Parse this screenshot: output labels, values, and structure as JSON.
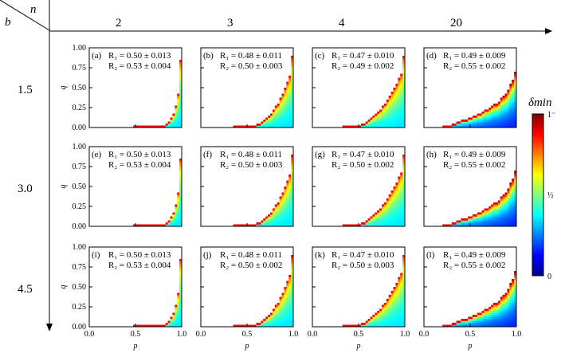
{
  "corner": {
    "row_label": "b",
    "col_label": "n"
  },
  "chart_data": {
    "type": "heatmap",
    "grid": {
      "rows": 3,
      "cols": 4
    },
    "col_header": [
      "2",
      "3",
      "4",
      "20"
    ],
    "row_header": [
      "1.5",
      "3.0",
      "4.5"
    ],
    "n_values": [
      2,
      3,
      4,
      20
    ],
    "b_values": [
      1.5,
      3.0,
      4.5
    ],
    "xlabel": "p",
    "ylabel": "q",
    "xlim": [
      0,
      1
    ],
    "ylim": [
      0,
      1
    ],
    "x_ticks": [
      "0.0",
      "0.5",
      "1.0"
    ],
    "y_ticks": [
      "0.00",
      "0.25",
      "0.50",
      "0.75",
      "1.00"
    ],
    "colorbar": {
      "label": "δmin",
      "ticks": [
        "0",
        "½",
        "1⁻"
      ],
      "range": [
        0,
        1
      ],
      "colormap": "jet"
    },
    "panels": [
      {
        "tag": "(a)",
        "r1": "R₁ = 0.50 ± 0.013",
        "r2": "R₂ = 0.53 ± 0.004",
        "n": 2,
        "b": 1.5
      },
      {
        "tag": "(b)",
        "r1": "R₁ = 0.48 ± 0.011",
        "r2": "R₂ = 0.50 ± 0.003",
        "n": 3,
        "b": 1.5
      },
      {
        "tag": "(c)",
        "r1": "R₁ = 0.47 ± 0.010",
        "r2": "R₂ = 0.49 ± 0.002",
        "n": 4,
        "b": 1.5
      },
      {
        "tag": "(d)",
        "r1": "R₁ = 0.49 ± 0.009",
        "r2": "R₂ = 0.55 ± 0.002",
        "n": 20,
        "b": 1.5
      },
      {
        "tag": "(e)",
        "r1": "R₁ = 0.50 ± 0.013",
        "r2": "R₂ = 0.53 ± 0.004",
        "n": 2,
        "b": 3.0
      },
      {
        "tag": "(f)",
        "r1": "R₁ = 0.48 ± 0.011",
        "r2": "R₂ = 0.50 ± 0.003",
        "n": 3,
        "b": 3.0
      },
      {
        "tag": "(g)",
        "r1": "R₁ = 0.47 ± 0.010",
        "r2": "R₂ = 0.50 ± 0.002",
        "n": 4,
        "b": 3.0
      },
      {
        "tag": "(h)",
        "r1": "R₁ = 0.49 ± 0.009",
        "r2": "R₂ = 0.55 ± 0.002",
        "n": 20,
        "b": 3.0
      },
      {
        "tag": "(i)",
        "r1": "R₁ = 0.50 ± 0.013",
        "r2": "R₂ = 0.53 ± 0.004",
        "n": 2,
        "b": 4.5
      },
      {
        "tag": "(j)",
        "r1": "R₁ = 0.48 ± 0.011",
        "r2": "R₂ = 0.50 ± 0.002",
        "n": 3,
        "b": 4.5
      },
      {
        "tag": "(k)",
        "r1": "R₁ = 0.47 ± 0.010",
        "r2": "R₂ = 0.50 ± 0.003",
        "n": 4,
        "b": 4.5
      },
      {
        "tag": "(l)",
        "r1": "R₁ = 0.49 ± 0.009",
        "r2": "R₂ = 0.55 ± 0.002",
        "n": 20,
        "b": 4.5
      }
    ]
  }
}
